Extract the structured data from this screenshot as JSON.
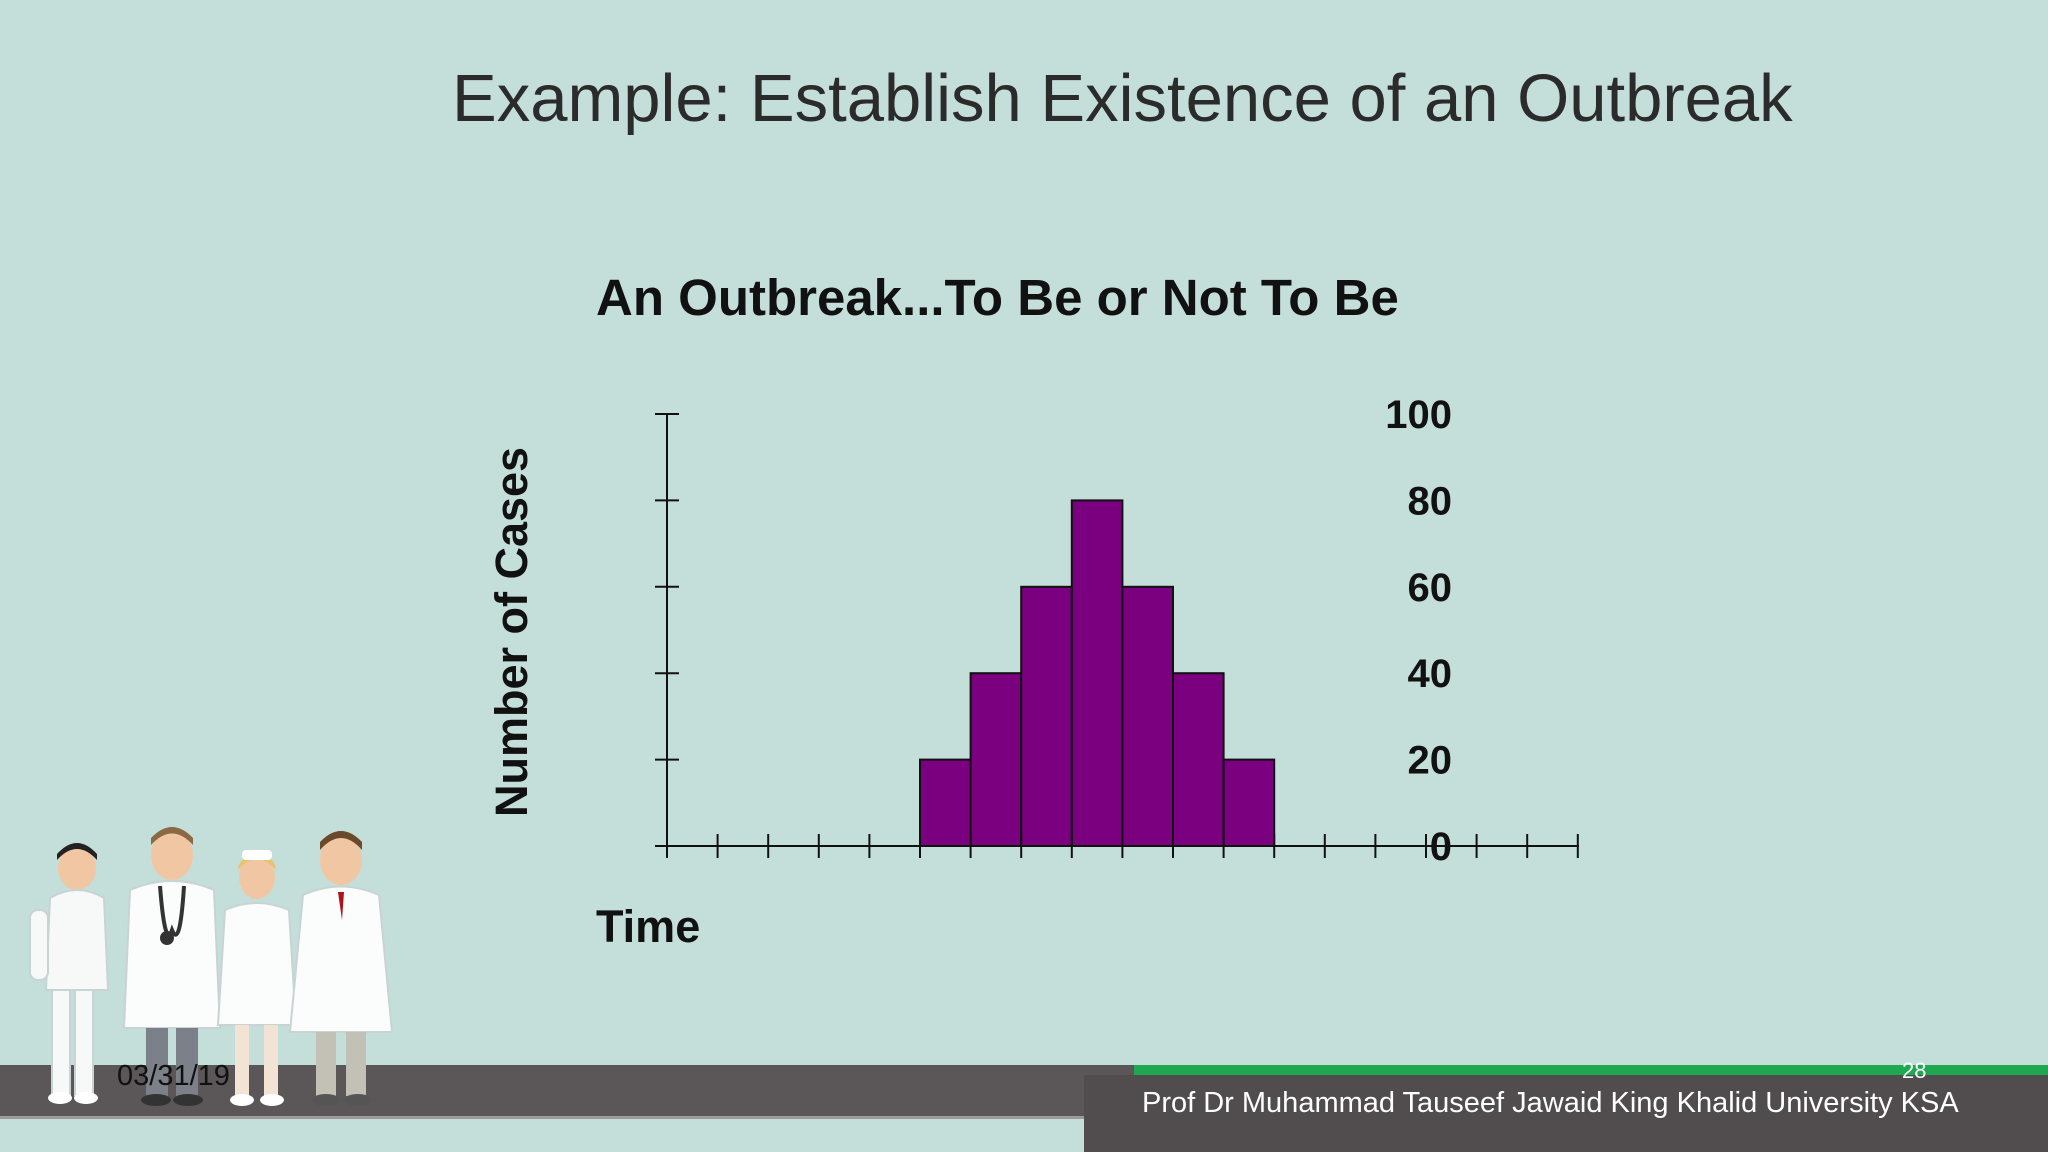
{
  "slide": {
    "title": "Example: Establish Existence of an Outbreak",
    "date": "03/31/19",
    "page_number": "28",
    "author": "Prof Dr Muhammad Tauseef Jawaid King Khalid University KSA"
  },
  "chart_data": {
    "type": "bar",
    "title": "An Outbreak...To Be or Not To Be",
    "ylabel": "Number of Cases",
    "xlabel": "Time",
    "ylim": [
      0,
      100
    ],
    "yticks": [
      "100",
      "80",
      "60",
      "40",
      "20",
      "0"
    ],
    "x_slots": 18,
    "values": [
      0,
      0,
      0,
      0,
      0,
      20,
      40,
      60,
      80,
      60,
      40,
      20,
      0,
      0,
      0,
      0,
      0,
      0
    ],
    "bar_color": "#7b007f",
    "grid": false
  }
}
